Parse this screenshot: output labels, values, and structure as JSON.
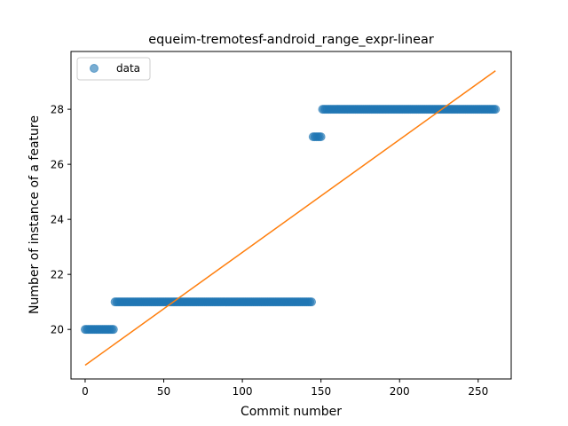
{
  "chart_data": {
    "type": "scatter",
    "title": "equeim-tremotesf-android_range_expr-linear",
    "xlabel": "Commit number",
    "ylabel": "Number of instance of a feature",
    "xlim": [
      -9,
      271
    ],
    "ylim": [
      18.2,
      30.1
    ],
    "xticks": [
      0,
      50,
      100,
      150,
      200,
      250
    ],
    "yticks": [
      20,
      22,
      24,
      26,
      28
    ],
    "legend": {
      "position": "top-left",
      "entries": [
        "data"
      ]
    },
    "grid": false,
    "colors": {
      "data": "#1f77b4",
      "fit": "#ff7f0e"
    },
    "series": [
      {
        "name": "data",
        "kind": "points",
        "segments": [
          {
            "x_start": 0,
            "x_end": 18,
            "y": 20
          },
          {
            "x_start": 19,
            "x_end": 144,
            "y": 21
          },
          {
            "x_start": 145,
            "x_end": 150,
            "y": 27
          },
          {
            "x_start": 151,
            "x_end": 261,
            "y": 28
          }
        ]
      },
      {
        "kind": "line",
        "x": [
          0,
          261
        ],
        "y": [
          18.7,
          29.4
        ]
      }
    ]
  }
}
